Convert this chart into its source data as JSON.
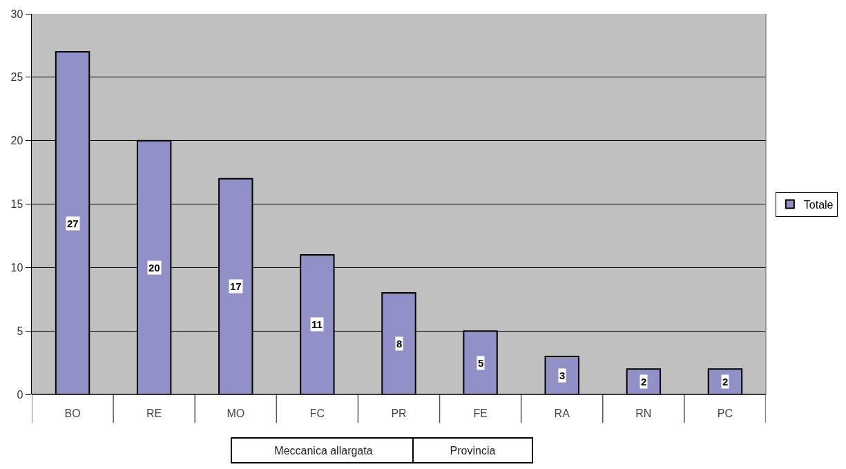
{
  "chart_data": {
    "type": "bar",
    "categories": [
      "BO",
      "RE",
      "MO",
      "FC",
      "PR",
      "FE",
      "RA",
      "RN",
      "PC"
    ],
    "series": [
      {
        "name": "Totale",
        "color": "#9191c7",
        "values": [
          27,
          20,
          17,
          11,
          8,
          5,
          3,
          2,
          2
        ]
      }
    ],
    "ylim": [
      0,
      30
    ],
    "yticks": [
      0,
      5,
      10,
      15,
      20,
      25,
      30
    ],
    "grid": "y",
    "legend": "right",
    "data_labels": true,
    "annotations": [
      "Meccanica allargata",
      "Provincia"
    ]
  }
}
